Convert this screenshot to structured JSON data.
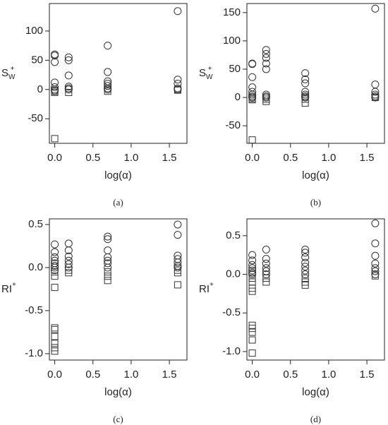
{
  "chart_data": [
    {
      "type": "scatter",
      "caption": "(a)",
      "xlabel": "log(α)",
      "ylabel": "S",
      "ylabel_sub": "W",
      "ylabel_sup": "+",
      "xlim": [
        -0.07,
        1.73
      ],
      "xticks": [
        {
          "value": 0,
          "label": "0.0"
        },
        0.5,
        {
          "value": 1,
          "label": "1.0"
        },
        1.5
      ],
      "ylim": [
        -92,
        147
      ],
      "yticks": [
        -50,
        0,
        50,
        100
      ],
      "series": [
        {
          "marker": "circle",
          "color": "#333333",
          "x": [
            0,
            0,
            0,
            0,
            0,
            0,
            0,
            0.182,
            0.182,
            0.182,
            0.182,
            0.182,
            0.182,
            0.693,
            0.693,
            0.693,
            0.693,
            0.693,
            0.693,
            0.693,
            1.609,
            1.609,
            1.609,
            1.609,
            1.609
          ],
          "values": [
            60,
            58,
            47,
            12,
            4,
            0,
            -2,
            55,
            50,
            24,
            5,
            2,
            0,
            75,
            30,
            14,
            10,
            6,
            2,
            0,
            134,
            17,
            10,
            2,
            0
          ]
        },
        {
          "marker": "square",
          "color": "#333333",
          "x": [
            0,
            0,
            0,
            0.182,
            0.693,
            1.609,
            1.609
          ],
          "values": [
            -3,
            -5,
            -84,
            -5,
            -3,
            0,
            -1
          ]
        }
      ]
    },
    {
      "type": "scatter",
      "caption": "(b)",
      "xlabel": "log(α)",
      "ylabel": "S",
      "ylabel_sub": "W",
      "ylabel_sup": "+",
      "xlim": [
        -0.07,
        1.73
      ],
      "xticks": [
        {
          "value": 0,
          "label": "0.0"
        },
        0.5,
        {
          "value": 1,
          "label": "1.0"
        },
        1.5
      ],
      "ylim": [
        -81,
        166
      ],
      "yticks": [
        -50,
        0,
        50,
        100,
        150
      ],
      "series": [
        {
          "marker": "circle",
          "color": "#333333",
          "x": [
            0,
            0,
            0,
            0,
            0,
            0,
            0,
            0,
            0.182,
            0.182,
            0.182,
            0.182,
            0.182,
            0.182,
            0.182,
            0.182,
            0.693,
            0.693,
            0.693,
            0.693,
            0.693,
            0.693,
            0.693,
            1.609,
            1.609,
            1.609,
            1.609,
            1.609,
            1.609
          ],
          "values": [
            60,
            59,
            36,
            18,
            10,
            5,
            2,
            0,
            84,
            77,
            70,
            60,
            50,
            5,
            2,
            0,
            43,
            32,
            25,
            10,
            5,
            2,
            0,
            157,
            23,
            10,
            5,
            2,
            0
          ]
        },
        {
          "marker": "square",
          "color": "#333333",
          "x": [
            0,
            0,
            0,
            0.182,
            0.182,
            0.693,
            0.693,
            1.609
          ],
          "values": [
            -2,
            -4,
            -75,
            -3,
            -7,
            -3,
            -10,
            0
          ]
        }
      ]
    },
    {
      "type": "scatter",
      "caption": "(c)",
      "xlabel": "log(α)",
      "ylabel": "RI",
      "ylabel_sup": "+",
      "xlim": [
        -0.07,
        1.73
      ],
      "xticks": [
        {
          "value": 0,
          "label": "0.0"
        },
        0.5,
        {
          "value": 1,
          "label": "1.0"
        },
        1.5
      ],
      "ylim": [
        -1.074,
        0.566
      ],
      "yticks": [
        {
          "value": -1,
          "label": "-1.0"
        },
        -0.5,
        {
          "value": 0,
          "label": "0.0"
        },
        0.5
      ],
      "series": [
        {
          "marker": "circle",
          "color": "#333333",
          "x": [
            0,
            0,
            0,
            0,
            0,
            0,
            0,
            0,
            0.182,
            0.182,
            0.182,
            0.182,
            0.182,
            0.182,
            0.693,
            0.693,
            0.693,
            0.693,
            0.693,
            0.693,
            0.693,
            1.609,
            1.609,
            1.609,
            1.609,
            1.609,
            1.609,
            1.609
          ],
          "values": [
            0.27,
            0.18,
            0.12,
            0.08,
            0.05,
            0.02,
            0,
            -0.03,
            0.28,
            0.2,
            0.13,
            0.08,
            0.04,
            0,
            0.36,
            0.33,
            0.2,
            0.12,
            0.08,
            0.05,
            0,
            0.5,
            0.38,
            0.14,
            0.1,
            0.06,
            0.02,
            0
          ]
        },
        {
          "marker": "square",
          "color": "#333333",
          "x": [
            0,
            0,
            0,
            0,
            0,
            0,
            0,
            0,
            0,
            0.182,
            0.182,
            0.693,
            0.693,
            0.693,
            1.609,
            1.609,
            1.609
          ],
          "values": [
            -0.05,
            -0.1,
            -0.23,
            -0.7,
            -0.72,
            -0.8,
            -0.88,
            -0.93,
            -0.97,
            -0.03,
            -0.06,
            -0.05,
            -0.1,
            -0.15,
            -0.03,
            -0.06,
            -0.2
          ]
        }
      ]
    },
    {
      "type": "scatter",
      "caption": "(d)",
      "xlabel": "log(α)",
      "ylabel": "RI",
      "ylabel_sup": "+",
      "xlim": [
        -0.07,
        1.73
      ],
      "xticks": [
        {
          "value": 0,
          "label": "0.0"
        },
        0.5,
        {
          "value": 1,
          "label": "1.0"
        },
        1.5
      ],
      "ylim": [
        -1.11,
        0.718
      ],
      "yticks": [
        {
          "value": -1,
          "label": "-1.0"
        },
        -0.5,
        {
          "value": 0,
          "label": "0.0"
        },
        0.5
      ],
      "series": [
        {
          "marker": "circle",
          "color": "#333333",
          "x": [
            0,
            0,
            0,
            0,
            0,
            0,
            0,
            0.182,
            0.182,
            0.182,
            0.182,
            0.182,
            0.182,
            0.693,
            0.693,
            0.693,
            0.693,
            0.693,
            0.693,
            0.693,
            1.609,
            1.609,
            1.609,
            1.609,
            1.609,
            1.609,
            1.609
          ],
          "values": [
            0.25,
            0.18,
            0.12,
            0.08,
            0.05,
            0.02,
            0,
            0.32,
            0.2,
            0.14,
            0.08,
            0.04,
            0,
            0.32,
            0.28,
            0.22,
            0.15,
            0.1,
            0.05,
            0,
            0.66,
            0.4,
            0.24,
            0.14,
            0.08,
            0.04,
            0
          ]
        },
        {
          "marker": "square",
          "color": "#333333",
          "x": [
            0,
            0,
            0,
            0,
            0,
            0,
            0,
            0,
            0,
            0.182,
            0.182,
            0.693,
            0.693,
            0.693,
            1.609
          ],
          "values": [
            -0.05,
            -0.1,
            -0.18,
            -0.22,
            -0.66,
            -0.7,
            -0.75,
            -0.85,
            -1.02,
            -0.05,
            -0.1,
            -0.05,
            -0.1,
            -0.14,
            -0.02
          ]
        }
      ]
    }
  ]
}
